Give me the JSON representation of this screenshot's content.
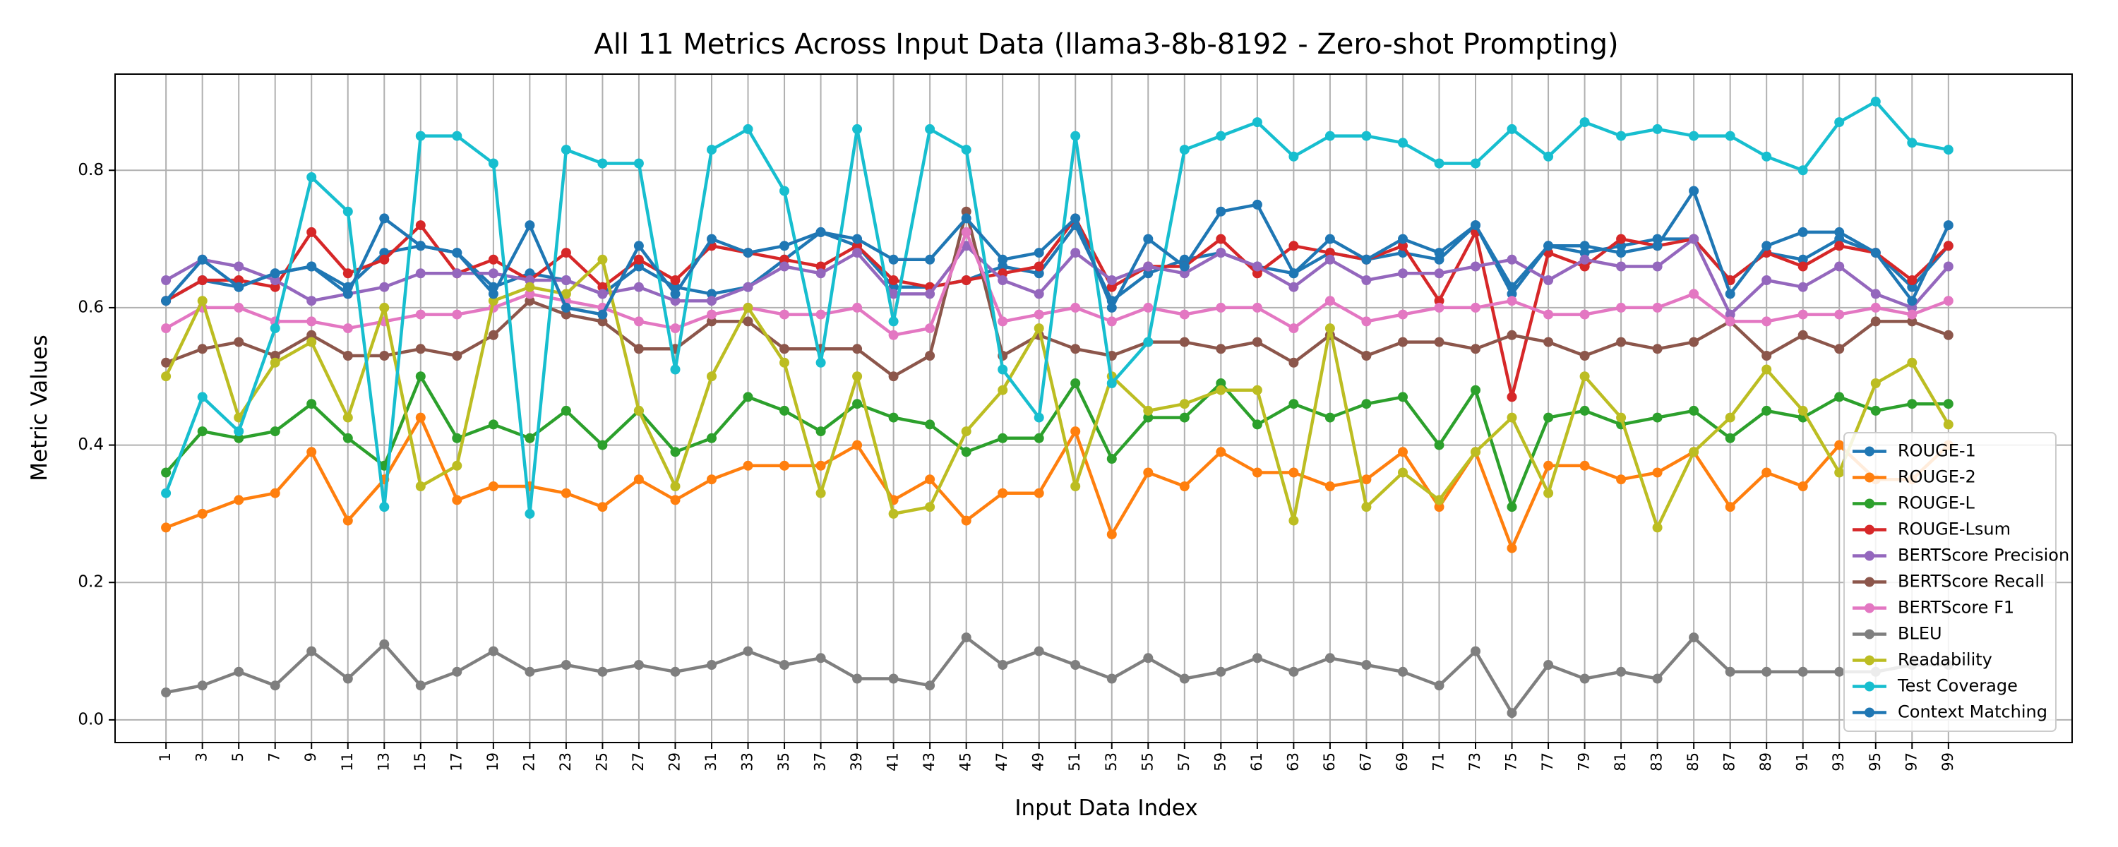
{
  "chart_data": {
    "type": "line",
    "title": "All 11 Metrics Across Input Data (llama3-8b-8192 - Zero-shot Prompting)",
    "xlabel": "Input Data Index",
    "ylabel": "Metric Values",
    "xlim": [
      -1.4,
      52.4
    ],
    "ylim": [
      -0.033,
      0.94
    ],
    "xticks": [
      "1",
      "3",
      "5",
      "7",
      "9",
      "11",
      "13",
      "15",
      "17",
      "19",
      "21",
      "23",
      "25",
      "27",
      "29",
      "31",
      "33",
      "35",
      "37",
      "39",
      "41",
      "43",
      "45",
      "47",
      "49",
      "51",
      "53",
      "55",
      "57",
      "59",
      "61",
      "63",
      "65",
      "67",
      "69",
      "71",
      "73",
      "75",
      "77",
      "79",
      "81",
      "83",
      "85",
      "87",
      "89",
      "91",
      "93",
      "95",
      "97",
      "99"
    ],
    "yticks": [
      0.0,
      0.2,
      0.4,
      0.6,
      0.8
    ],
    "ytick_labels": [
      "0.0",
      "0.2",
      "0.4",
      "0.6",
      "0.8"
    ],
    "grid": true,
    "legend_position": "lower-right",
    "series": [
      {
        "name": "ROUGE-1",
        "color": "#1f77b4",
        "values": [
          0.61,
          0.64,
          0.63,
          0.65,
          0.66,
          0.63,
          0.68,
          0.69,
          0.68,
          0.63,
          0.65,
          0.64,
          0.62,
          0.66,
          0.63,
          0.62,
          0.63,
          0.67,
          0.71,
          0.69,
          0.63,
          0.63,
          0.64,
          0.66,
          0.65,
          0.72,
          0.61,
          0.65,
          0.67,
          0.68,
          0.66,
          0.65,
          0.68,
          0.67,
          0.68,
          0.67,
          0.72,
          0.62,
          0.69,
          0.68,
          0.69,
          0.7,
          0.7,
          0.64,
          0.68,
          0.67,
          0.7,
          0.68,
          0.63,
          0.69
        ]
      },
      {
        "name": "ROUGE-2",
        "color": "#ff7f0e",
        "values": [
          0.28,
          0.3,
          0.32,
          0.33,
          0.39,
          0.29,
          0.35,
          0.44,
          0.32,
          0.34,
          0.34,
          0.33,
          0.31,
          0.35,
          0.32,
          0.35,
          0.37,
          0.37,
          0.37,
          0.4,
          0.32,
          0.35,
          0.29,
          0.33,
          0.33,
          0.42,
          0.27,
          0.36,
          0.34,
          0.39,
          0.36,
          0.36,
          0.34,
          0.35,
          0.39,
          0.31,
          0.39,
          0.25,
          0.37,
          0.37,
          0.35,
          0.36,
          0.39,
          0.31,
          0.36,
          0.34,
          0.4,
          0.35,
          0.35,
          0.4
        ]
      },
      {
        "name": "ROUGE-L",
        "color": "#2ca02c",
        "values": [
          0.36,
          0.42,
          0.41,
          0.42,
          0.46,
          0.41,
          0.37,
          0.5,
          0.41,
          0.43,
          0.41,
          0.45,
          0.4,
          0.45,
          0.39,
          0.41,
          0.47,
          0.45,
          0.42,
          0.46,
          0.44,
          0.43,
          0.39,
          0.41,
          0.41,
          0.49,
          0.38,
          0.44,
          0.44,
          0.49,
          0.43,
          0.46,
          0.44,
          0.46,
          0.47,
          0.4,
          0.48,
          0.31,
          0.44,
          0.45,
          0.43,
          0.44,
          0.45,
          0.41,
          0.45,
          0.44,
          0.47,
          0.45,
          0.46,
          0.46
        ]
      },
      {
        "name": "ROUGE-Lsum",
        "color": "#d62728",
        "values": [
          0.61,
          0.64,
          0.64,
          0.63,
          0.71,
          0.65,
          0.67,
          0.72,
          0.65,
          0.67,
          0.64,
          0.68,
          0.63,
          0.67,
          0.64,
          0.69,
          0.68,
          0.67,
          0.66,
          0.69,
          0.64,
          0.63,
          0.64,
          0.65,
          0.66,
          0.73,
          0.63,
          0.66,
          0.66,
          0.7,
          0.65,
          0.69,
          0.68,
          0.67,
          0.69,
          0.61,
          0.71,
          0.47,
          0.68,
          0.66,
          0.7,
          0.69,
          0.7,
          0.64,
          0.68,
          0.66,
          0.69,
          0.68,
          0.64,
          0.69
        ]
      },
      {
        "name": "BERTScore Precision",
        "color": "#9467bd",
        "values": [
          0.64,
          0.67,
          0.66,
          0.64,
          0.61,
          0.62,
          0.63,
          0.65,
          0.65,
          0.65,
          0.64,
          0.64,
          0.62,
          0.63,
          0.61,
          0.61,
          0.63,
          0.66,
          0.65,
          0.68,
          0.62,
          0.62,
          0.69,
          0.64,
          0.62,
          0.68,
          0.64,
          0.66,
          0.65,
          0.68,
          0.66,
          0.63,
          0.67,
          0.64,
          0.65,
          0.65,
          0.66,
          0.67,
          0.64,
          0.67,
          0.66,
          0.66,
          0.7,
          0.59,
          0.64,
          0.63,
          0.66,
          0.62,
          0.6,
          0.66
        ]
      },
      {
        "name": "BERTScore Recall",
        "color": "#8c564b",
        "values": [
          0.52,
          0.54,
          0.55,
          0.53,
          0.56,
          0.53,
          0.53,
          0.54,
          0.53,
          0.56,
          0.61,
          0.59,
          0.58,
          0.54,
          0.54,
          0.58,
          0.58,
          0.54,
          0.54,
          0.54,
          0.5,
          0.53,
          0.74,
          0.53,
          0.56,
          0.54,
          0.53,
          0.55,
          0.55,
          0.54,
          0.55,
          0.52,
          0.56,
          0.53,
          0.55,
          0.55,
          0.54,
          0.56,
          0.55,
          0.53,
          0.55,
          0.54,
          0.55,
          0.58,
          0.53,
          0.56,
          0.54,
          0.58,
          0.58,
          0.56
        ]
      },
      {
        "name": "BERTScore F1",
        "color": "#e377c2",
        "values": [
          0.57,
          0.6,
          0.6,
          0.58,
          0.58,
          0.57,
          0.58,
          0.59,
          0.59,
          0.6,
          0.62,
          0.61,
          0.6,
          0.58,
          0.57,
          0.59,
          0.6,
          0.59,
          0.59,
          0.6,
          0.56,
          0.57,
          0.71,
          0.58,
          0.59,
          0.6,
          0.58,
          0.6,
          0.59,
          0.6,
          0.6,
          0.57,
          0.61,
          0.58,
          0.59,
          0.6,
          0.6,
          0.61,
          0.59,
          0.59,
          0.6,
          0.6,
          0.62,
          0.58,
          0.58,
          0.59,
          0.59,
          0.6,
          0.59,
          0.61
        ]
      },
      {
        "name": "BLEU",
        "color": "#7f7f7f",
        "values": [
          0.04,
          0.05,
          0.07,
          0.05,
          0.1,
          0.06,
          0.11,
          0.05,
          0.07,
          0.1,
          0.07,
          0.08,
          0.07,
          0.08,
          0.07,
          0.08,
          0.1,
          0.08,
          0.09,
          0.06,
          0.06,
          0.05,
          0.12,
          0.08,
          0.1,
          0.08,
          0.06,
          0.09,
          0.06,
          0.07,
          0.09,
          0.07,
          0.09,
          0.08,
          0.07,
          0.05,
          0.1,
          0.01,
          0.08,
          0.06,
          0.07,
          0.06,
          0.12,
          0.07,
          0.07,
          0.07,
          0.07,
          0.07,
          0.08,
          0.08
        ]
      },
      {
        "name": "Readability",
        "color": "#bcbd22",
        "values": [
          0.5,
          0.61,
          0.44,
          0.52,
          0.55,
          0.44,
          0.6,
          0.34,
          0.37,
          0.61,
          0.63,
          0.62,
          0.67,
          0.45,
          0.34,
          0.5,
          0.6,
          0.52,
          0.33,
          0.5,
          0.3,
          0.31,
          0.42,
          0.48,
          0.57,
          0.34,
          0.5,
          0.45,
          0.46,
          0.48,
          0.48,
          0.29,
          0.57,
          0.31,
          0.36,
          0.32,
          0.39,
          0.44,
          0.33,
          0.5,
          0.44,
          0.28,
          0.39,
          0.44,
          0.51,
          0.45,
          0.36,
          0.49,
          0.52,
          0.43
        ]
      },
      {
        "name": "Test Coverage",
        "color": "#17becf",
        "values": [
          0.33,
          0.47,
          0.42,
          0.57,
          0.79,
          0.74,
          0.31,
          0.85,
          0.85,
          0.81,
          0.3,
          0.83,
          0.81,
          0.81,
          0.51,
          0.83,
          0.86,
          0.77,
          0.52,
          0.86,
          0.58,
          0.86,
          0.83,
          0.51,
          0.44,
          0.85,
          0.49,
          0.55,
          0.83,
          0.85,
          0.87,
          0.82,
          0.85,
          0.85,
          0.84,
          0.81,
          0.81,
          0.86,
          0.82,
          0.87,
          0.85,
          0.86,
          0.85,
          0.85,
          0.82,
          0.8,
          0.87,
          0.9,
          0.84,
          0.83
        ]
      },
      {
        "name": "Context Matching",
        "color": "#1f77b4",
        "values": [
          0.61,
          0.67,
          0.63,
          0.65,
          0.66,
          0.62,
          0.73,
          0.69,
          0.68,
          0.62,
          0.72,
          0.6,
          0.59,
          0.69,
          0.62,
          0.7,
          0.68,
          0.69,
          0.71,
          0.7,
          0.67,
          0.67,
          0.73,
          0.67,
          0.68,
          0.73,
          0.6,
          0.7,
          0.66,
          0.74,
          0.75,
          0.65,
          0.7,
          0.67,
          0.7,
          0.68,
          0.72,
          0.63,
          0.69,
          0.69,
          0.68,
          0.69,
          0.77,
          0.62,
          0.69,
          0.71,
          0.71,
          0.68,
          0.61,
          0.72
        ]
      }
    ]
  }
}
